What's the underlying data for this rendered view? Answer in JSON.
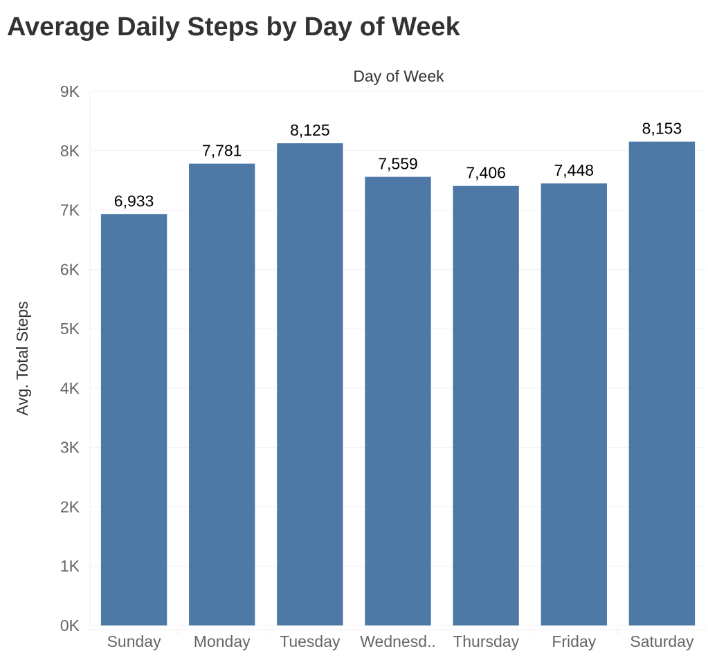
{
  "chart_data": {
    "type": "bar",
    "title": "Average Daily Steps by Day of Week",
    "xlabel": "Day of Week",
    "ylabel": "Avg. Total Steps",
    "categories": [
      "Sunday",
      "Monday",
      "Tuesday",
      "Wednesd..",
      "Thursday",
      "Friday",
      "Saturday"
    ],
    "values": [
      6933,
      7781,
      8125,
      7559,
      7406,
      7448,
      8153
    ],
    "value_labels": [
      "6,933",
      "7,781",
      "8,125",
      "7,559",
      "7,406",
      "7,448",
      "8,153"
    ],
    "ylim": [
      0,
      9000
    ],
    "yticks": [
      0,
      1000,
      2000,
      3000,
      4000,
      5000,
      6000,
      7000,
      8000,
      9000
    ],
    "ytick_labels": [
      "0K",
      "1K",
      "2K",
      "3K",
      "4K",
      "5K",
      "6K",
      "7K",
      "8K",
      "9K"
    ],
    "grid": true,
    "bar_color": "#4e79a7",
    "grid_color": "#f0f0f0"
  }
}
